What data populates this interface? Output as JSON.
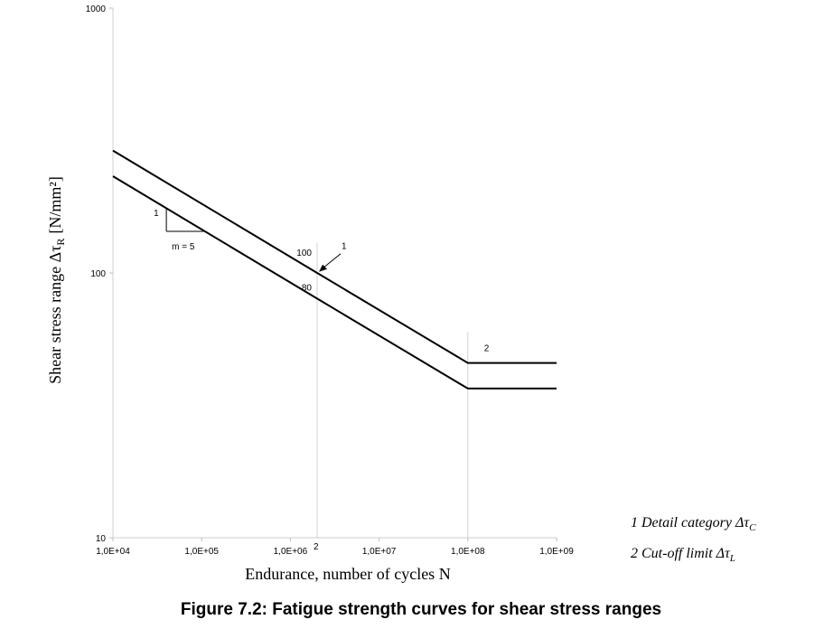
{
  "chart_data": {
    "type": "line",
    "x_scale": "log",
    "y_scale": "log",
    "xlim": [
      10000,
      1000000000
    ],
    "ylim": [
      10,
      1000
    ],
    "x_ticks": [
      "1,0E+04",
      "1,0E+05",
      "1,0E+06",
      "1,0E+07",
      "1,0E+08",
      "1,0E+09"
    ],
    "x_tick_values": [
      10000,
      100000,
      1000000,
      10000000,
      100000000,
      1000000000
    ],
    "y_ticks": [
      "10",
      "100",
      "1000"
    ],
    "y_tick_values": [
      10,
      100,
      1000
    ],
    "xlabel": "Endurance, number of cycles N",
    "ylabel": "Shear stress range Δτ",
    "ylabel_sub": "R",
    "ylabel_unit": "[N/mm²]",
    "grid": false,
    "vertical_lines": [
      2000000,
      100000000
    ],
    "series": [
      {
        "x": [
          10000,
          2000000,
          100000000,
          1000000000
        ],
        "y": [
          289.8,
          100,
          45.7,
          45.7
        ]
      },
      {
        "x": [
          10000,
          2000000,
          100000000,
          1000000000
        ],
        "y": [
          231.8,
          80,
          36.6,
          36.6
        ]
      }
    ],
    "annotations": {
      "value_upper": "100",
      "value_lower": "80",
      "slope_rise": "1",
      "slope_label": "m = 5",
      "arrow_label": "1",
      "cutoff_label": "2",
      "n_label": "2"
    }
  },
  "legend": {
    "item1_text": "1  Detail category Δτ",
    "item1_sub": "C",
    "item2_text": "2  Cut-off limit Δτ",
    "item2_sub": "L"
  },
  "caption": "Figure 7.2: Fatigue strength curves for shear stress ranges"
}
